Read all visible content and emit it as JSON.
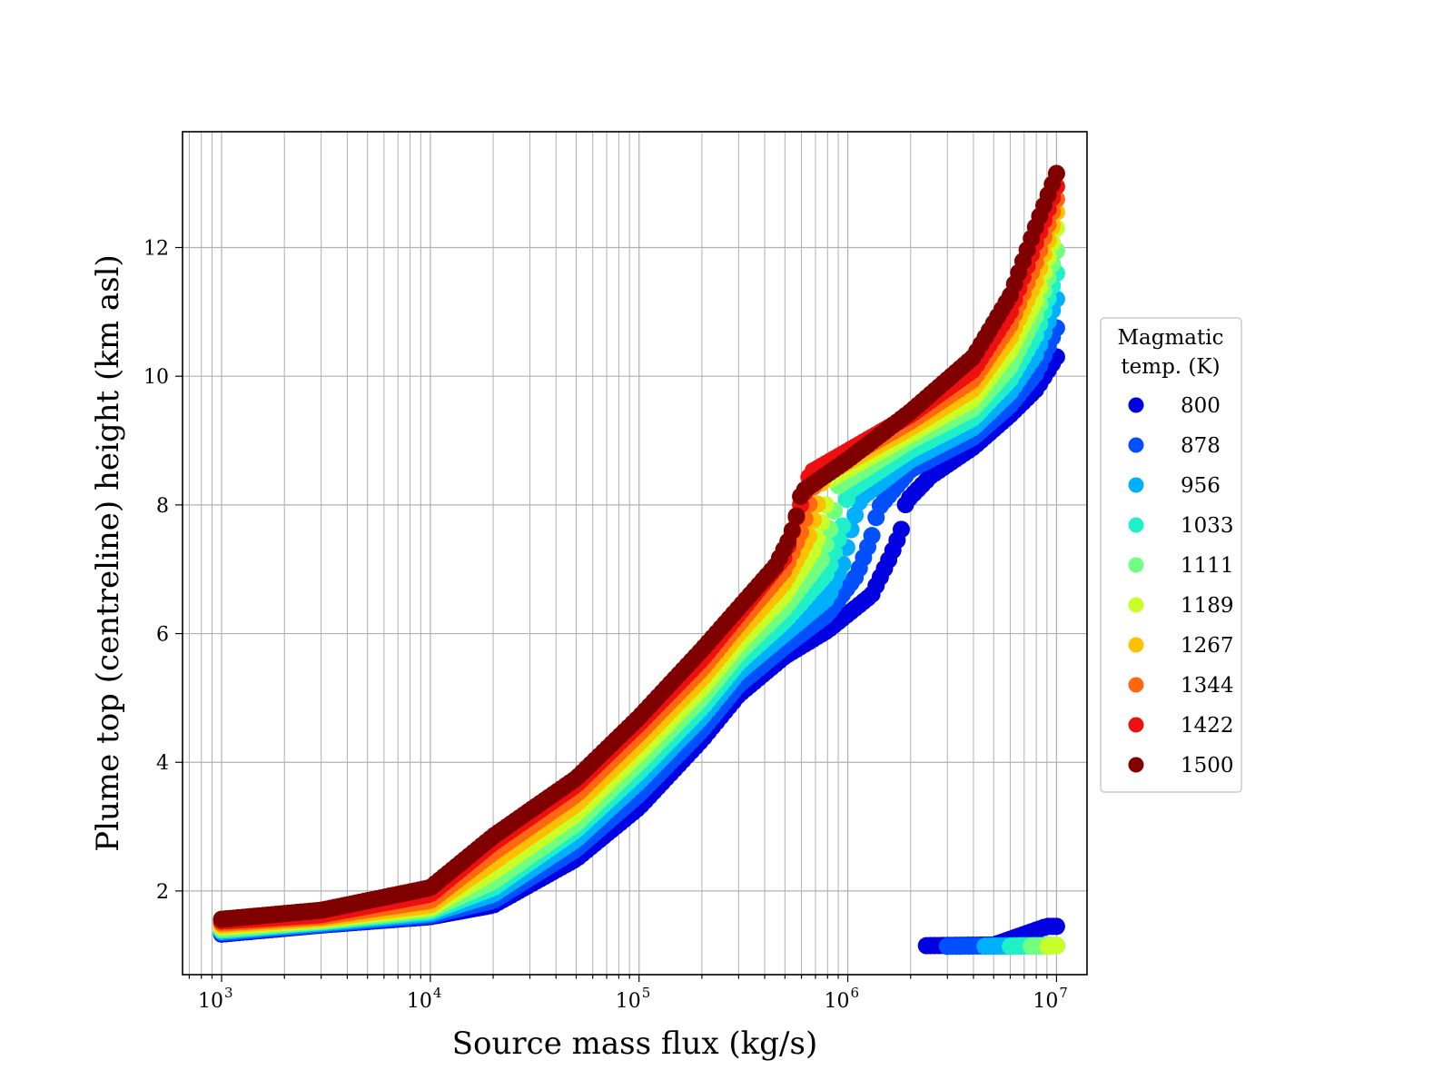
{
  "chart_data": {
    "type": "scatter",
    "xlabel": "Source mass flux (kg/s)",
    "ylabel": "Plume top (centreline) height (km asl)",
    "xscale": "log",
    "xlim": [
      650,
      14000000
    ],
    "ylim": [
      0.7,
      13.8
    ],
    "grid": true,
    "x_ticks": [
      {
        "value": 1000,
        "base": "10",
        "exp": "3"
      },
      {
        "value": 10000,
        "base": "10",
        "exp": "4"
      },
      {
        "value": 100000,
        "base": "10",
        "exp": "5"
      },
      {
        "value": 1000000,
        "base": "10",
        "exp": "6"
      },
      {
        "value": 10000000,
        "base": "10",
        "exp": "7"
      }
    ],
    "y_ticks": [
      {
        "value": 2,
        "label": "2"
      },
      {
        "value": 4,
        "label": "4"
      },
      {
        "value": 6,
        "label": "6"
      },
      {
        "value": 8,
        "label": "8"
      },
      {
        "value": 10,
        "label": "10"
      },
      {
        "value": 12,
        "label": "12"
      }
    ],
    "legend": {
      "title_lines": [
        "Magmatic",
        "temp. (K)"
      ],
      "placement": "right, outside plot"
    },
    "series": [
      {
        "name": "800",
        "color": "#0000e0",
        "main": [
          [
            1000,
            1.33
          ],
          [
            3000,
            1.47
          ],
          [
            10000,
            1.6
          ],
          [
            20000,
            1.78
          ],
          [
            50000,
            2.5
          ],
          [
            100000,
            3.3
          ],
          [
            200000,
            4.35
          ],
          [
            300000,
            5.05
          ],
          [
            500000,
            5.65
          ],
          [
            800000,
            6.05
          ],
          [
            1300000,
            6.6
          ],
          [
            1600000,
            7.2
          ],
          [
            1800000,
            7.6
          ],
          [
            1900000,
            8.05
          ],
          [
            2500000,
            8.45
          ],
          [
            4000000,
            8.9
          ],
          [
            6000000,
            9.4
          ],
          [
            8000000,
            9.8
          ],
          [
            10000000,
            10.3
          ]
        ],
        "branch": [
          [
            2300000,
            1.15
          ],
          [
            5000000,
            1.16
          ],
          [
            9000000,
            1.45
          ],
          [
            10000000,
            1.45
          ]
        ]
      },
      {
        "name": "878",
        "color": "#0050ff",
        "main": [
          [
            1000,
            1.35
          ],
          [
            3000,
            1.48
          ],
          [
            10000,
            1.62
          ],
          [
            20000,
            1.85
          ],
          [
            50000,
            2.65
          ],
          [
            100000,
            3.5
          ],
          [
            200000,
            4.5
          ],
          [
            300000,
            5.2
          ],
          [
            500000,
            5.8
          ],
          [
            800000,
            6.3
          ],
          [
            1100000,
            6.9
          ],
          [
            1300000,
            7.5
          ],
          [
            1400000,
            7.95
          ],
          [
            2000000,
            8.55
          ],
          [
            4000000,
            9.05
          ],
          [
            6000000,
            9.55
          ],
          [
            8000000,
            10.05
          ],
          [
            10000000,
            10.75
          ]
        ],
        "branch": [
          [
            3000000,
            1.14
          ],
          [
            6000000,
            1.15
          ],
          [
            10000000,
            1.15
          ]
        ]
      },
      {
        "name": "956",
        "color": "#00b0ff",
        "main": [
          [
            1000,
            1.37
          ],
          [
            3000,
            1.5
          ],
          [
            10000,
            1.65
          ],
          [
            20000,
            1.95
          ],
          [
            50000,
            2.8
          ],
          [
            100000,
            3.7
          ],
          [
            200000,
            4.7
          ],
          [
            300000,
            5.4
          ],
          [
            500000,
            6.0
          ],
          [
            800000,
            6.55
          ],
          [
            950000,
            7.1
          ],
          [
            1050000,
            7.7
          ],
          [
            1150000,
            8.1
          ],
          [
            2000000,
            8.7
          ],
          [
            4000000,
            9.2
          ],
          [
            6000000,
            9.75
          ],
          [
            8000000,
            10.35
          ],
          [
            10000000,
            11.2
          ]
        ],
        "branch": [
          [
            4500000,
            1.14
          ],
          [
            7000000,
            1.15
          ],
          [
            10000000,
            1.15
          ]
        ]
      },
      {
        "name": "1033",
        "color": "#20f0c8",
        "main": [
          [
            1000,
            1.39
          ],
          [
            3000,
            1.52
          ],
          [
            10000,
            1.68
          ],
          [
            20000,
            2.05
          ],
          [
            50000,
            2.95
          ],
          [
            100000,
            3.85
          ],
          [
            200000,
            4.85
          ],
          [
            300000,
            5.55
          ],
          [
            500000,
            6.2
          ],
          [
            800000,
            6.95
          ],
          [
            950000,
            7.7
          ],
          [
            1000000,
            8.2
          ],
          [
            2000000,
            8.85
          ],
          [
            4000000,
            9.35
          ],
          [
            6000000,
            9.95
          ],
          [
            8000000,
            10.65
          ],
          [
            10000000,
            11.6
          ]
        ],
        "branch": [
          [
            6000000,
            1.14
          ],
          [
            8000000,
            1.15
          ],
          [
            10000000,
            1.15
          ]
        ]
      },
      {
        "name": "1111",
        "color": "#70ff80",
        "main": [
          [
            1000,
            1.41
          ],
          [
            3000,
            1.53
          ],
          [
            10000,
            1.71
          ],
          [
            20000,
            2.15
          ],
          [
            50000,
            3.05
          ],
          [
            100000,
            4.0
          ],
          [
            200000,
            5.0
          ],
          [
            300000,
            5.7
          ],
          [
            500000,
            6.4
          ],
          [
            750000,
            7.15
          ],
          [
            850000,
            7.8
          ],
          [
            900000,
            8.3
          ],
          [
            2000000,
            9.0
          ],
          [
            4000000,
            9.5
          ],
          [
            6000000,
            10.15
          ],
          [
            8000000,
            10.95
          ],
          [
            10000000,
            11.95
          ]
        ],
        "branch": [
          [
            7500000,
            1.14
          ],
          [
            10000000,
            1.15
          ]
        ]
      },
      {
        "name": "1189",
        "color": "#c8ff28",
        "main": [
          [
            1000,
            1.44
          ],
          [
            3000,
            1.55
          ],
          [
            10000,
            1.74
          ],
          [
            20000,
            2.3
          ],
          [
            50000,
            3.2
          ],
          [
            100000,
            4.15
          ],
          [
            200000,
            5.15
          ],
          [
            300000,
            5.85
          ],
          [
            500000,
            6.6
          ],
          [
            700000,
            7.35
          ],
          [
            780000,
            7.95
          ],
          [
            820000,
            8.4
          ],
          [
            2000000,
            9.1
          ],
          [
            4000000,
            9.65
          ],
          [
            6000000,
            10.4
          ],
          [
            8000000,
            11.2
          ],
          [
            10000000,
            12.3
          ]
        ],
        "branch": [
          [
            9000000,
            1.14
          ],
          [
            10000000,
            1.15
          ]
        ]
      },
      {
        "name": "1267",
        "color": "#ffc000",
        "main": [
          [
            1000,
            1.47
          ],
          [
            3000,
            1.57
          ],
          [
            10000,
            1.78
          ],
          [
            20000,
            2.45
          ],
          [
            50000,
            3.35
          ],
          [
            100000,
            4.3
          ],
          [
            200000,
            5.3
          ],
          [
            300000,
            6.0
          ],
          [
            500000,
            6.8
          ],
          [
            650000,
            7.5
          ],
          [
            720000,
            8.05
          ],
          [
            760000,
            8.45
          ],
          [
            2000000,
            9.2
          ],
          [
            4000000,
            9.8
          ],
          [
            6000000,
            10.6
          ],
          [
            8000000,
            11.5
          ],
          [
            10000000,
            12.55
          ]
        ],
        "branch": []
      },
      {
        "name": "1344",
        "color": "#ff6810",
        "main": [
          [
            1000,
            1.5
          ],
          [
            3000,
            1.6
          ],
          [
            10000,
            1.85
          ],
          [
            20000,
            2.6
          ],
          [
            50000,
            3.5
          ],
          [
            100000,
            4.45
          ],
          [
            200000,
            5.45
          ],
          [
            300000,
            6.15
          ],
          [
            500000,
            7.0
          ],
          [
            600000,
            7.6
          ],
          [
            670000,
            8.15
          ],
          [
            700000,
            8.45
          ],
          [
            2000000,
            9.3
          ],
          [
            4000000,
            9.95
          ],
          [
            6000000,
            10.8
          ],
          [
            8000000,
            11.8
          ],
          [
            10000000,
            12.75
          ]
        ],
        "branch": []
      },
      {
        "name": "1422",
        "color": "#ee1010",
        "main": [
          [
            1000,
            1.53
          ],
          [
            3000,
            1.63
          ],
          [
            10000,
            1.95
          ],
          [
            20000,
            2.75
          ],
          [
            50000,
            3.65
          ],
          [
            100000,
            4.6
          ],
          [
            200000,
            5.6
          ],
          [
            300000,
            6.3
          ],
          [
            500000,
            7.2
          ],
          [
            560000,
            7.75
          ],
          [
            630000,
            8.25
          ],
          [
            660000,
            8.5
          ],
          [
            2000000,
            9.4
          ],
          [
            4000000,
            10.1
          ],
          [
            6000000,
            11.0
          ],
          [
            8000000,
            12.1
          ],
          [
            10000000,
            12.95
          ]
        ],
        "branch": []
      },
      {
        "name": "1500",
        "color": "#800000",
        "main": [
          [
            1000,
            1.56
          ],
          [
            3000,
            1.7
          ],
          [
            10000,
            2.05
          ],
          [
            20000,
            2.85
          ],
          [
            30000,
            3.25
          ],
          [
            50000,
            3.75
          ],
          [
            100000,
            4.7
          ],
          [
            200000,
            5.75
          ],
          [
            300000,
            6.4
          ],
          [
            450000,
            7.05
          ],
          [
            530000,
            7.5
          ],
          [
            570000,
            7.85
          ],
          [
            600000,
            8.2
          ],
          [
            1000000,
            8.7
          ],
          [
            2000000,
            9.45
          ],
          [
            4000000,
            10.3
          ],
          [
            6000000,
            11.25
          ],
          [
            8000000,
            12.35
          ],
          [
            10000000,
            13.15
          ]
        ],
        "branch": []
      }
    ]
  }
}
